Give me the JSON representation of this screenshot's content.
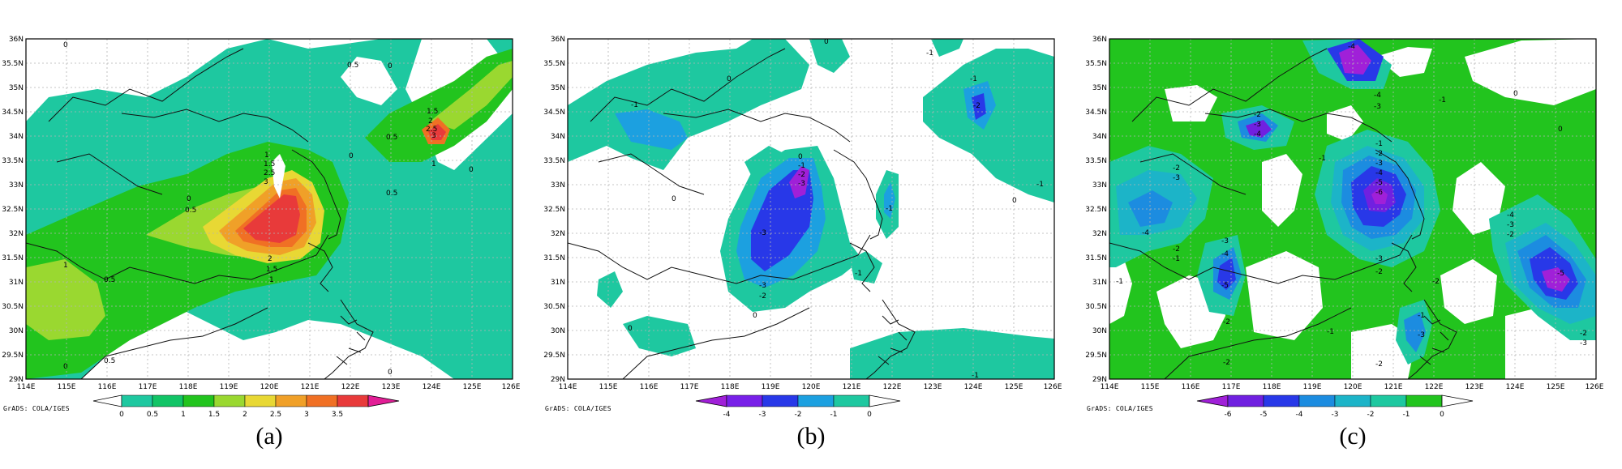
{
  "maps": [
    {
      "panel_label": "(a)",
      "credit": "GrADS: COLA/IGES",
      "lat_ticks": [
        "36N",
        "35.5N",
        "35N",
        "34.5N",
        "34N",
        "33.5N",
        "33N",
        "32.5N",
        "32N",
        "31.5N",
        "31N",
        "30.5N",
        "30N",
        "29.5N",
        "29N"
      ],
      "lon_ticks": [
        "114E",
        "115E",
        "116E",
        "117E",
        "118E",
        "119E",
        "120E",
        "121E",
        "122E",
        "123E",
        "124E",
        "125E",
        "126E"
      ],
      "colorbar_labels": [
        "0",
        "0.5",
        "1",
        "1.5",
        "2",
        "2.5",
        "3",
        "3.5"
      ],
      "colorbar_colors": [
        "#1ec8a0",
        "#11c466",
        "#22c41e",
        "#9ad830",
        "#e8d834",
        "#f0a028",
        "#f07024",
        "#e83a3a",
        "#e21e96"
      ],
      "contour_labels": [
        "0",
        "0.5",
        "1",
        "1.5",
        "2",
        "2.5",
        "3",
        "3.5"
      ]
    },
    {
      "panel_label": "(b)",
      "credit": "GrADS: COLA/IGES",
      "lat_ticks": [
        "36N",
        "35.5N",
        "35N",
        "34.5N",
        "34N",
        "33.5N",
        "33N",
        "32.5N",
        "32N",
        "31.5N",
        "31N",
        "30.5N",
        "30N",
        "29.5N",
        "29N"
      ],
      "lon_ticks": [
        "114E",
        "115E",
        "116E",
        "117E",
        "118E",
        "119E",
        "120E",
        "121E",
        "122E",
        "123E",
        "124E",
        "125E",
        "126E"
      ],
      "colorbar_labels": [
        "-4",
        "-3",
        "-2",
        "-1",
        "0"
      ],
      "colorbar_colors": [
        "#a020d8",
        "#7820e8",
        "#2838e8",
        "#1ca0e0",
        "#1ec8a0",
        "#ffffff"
      ],
      "contour_labels": [
        "0",
        "-1",
        "-2",
        "-3",
        "-4"
      ]
    },
    {
      "panel_label": "(c)",
      "credit": "GrADS: COLA/IGES",
      "lat_ticks": [
        "36N",
        "35.5N",
        "35N",
        "34.5N",
        "34N",
        "33.5N",
        "33N",
        "32.5N",
        "32N",
        "31.5N",
        "31N",
        "30.5N",
        "30N",
        "29.5N",
        "29N"
      ],
      "lon_ticks": [
        "114E",
        "115E",
        "116E",
        "117E",
        "118E",
        "119E",
        "120E",
        "121E",
        "122E",
        "123E",
        "124E",
        "125E",
        "126E"
      ],
      "colorbar_labels": [
        "-6",
        "-5",
        "-4",
        "-3",
        "-2",
        "-1",
        "0"
      ],
      "colorbar_colors": [
        "#a020d8",
        "#7020e0",
        "#2838e8",
        "#1c8ce0",
        "#1cb4c8",
        "#1ec8a0",
        "#22c41e",
        "#ffffff"
      ],
      "contour_labels": [
        "0",
        "-1",
        "-2",
        "-3",
        "-4",
        "-5",
        "-6"
      ]
    }
  ]
}
